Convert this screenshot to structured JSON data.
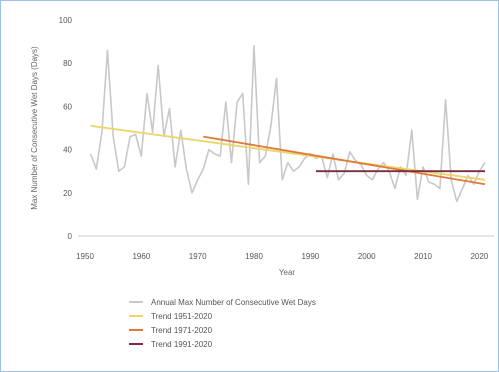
{
  "chart_data": {
    "type": "line",
    "xlabel": "Year",
    "ylabel": "Max Number of Consecutive Wet Days (Days)",
    "xlim": [
      1950,
      2021
    ],
    "ylim": [
      0,
      100
    ],
    "xticks": [
      "1950",
      "1960",
      "1970",
      "1980",
      "1990",
      "2000",
      "2010",
      "2020"
    ],
    "yticks": [
      "0",
      "20",
      "40",
      "60",
      "80",
      "100"
    ],
    "grid": false,
    "legend_position": "bottom",
    "series": [
      {
        "name": "Annual Max Number of Consecutive Wet Days",
        "color": "#c8c8c8",
        "x": [
          1951,
          1952,
          1953,
          1954,
          1955,
          1956,
          1957,
          1958,
          1959,
          1960,
          1961,
          1962,
          1963,
          1964,
          1965,
          1966,
          1967,
          1968,
          1969,
          1970,
          1971,
          1972,
          1973,
          1974,
          1975,
          1976,
          1977,
          1978,
          1979,
          1980,
          1981,
          1982,
          1983,
          1984,
          1985,
          1986,
          1987,
          1988,
          1989,
          1990,
          1991,
          1992,
          1993,
          1994,
          1995,
          1996,
          1997,
          1998,
          1999,
          2000,
          2001,
          2002,
          2003,
          2004,
          2005,
          2006,
          2007,
          2008,
          2009,
          2010,
          2011,
          2012,
          2013,
          2014,
          2015,
          2016,
          2017,
          2018,
          2019,
          2020,
          2021
        ],
        "values": [
          38,
          31,
          48,
          86,
          46,
          30,
          32,
          46,
          47,
          37,
          66,
          48,
          79,
          46,
          59,
          32,
          49,
          31,
          20,
          26,
          31,
          40,
          38,
          37,
          62,
          34,
          62,
          66,
          24,
          88,
          34,
          37,
          51,
          73,
          26,
          34,
          30,
          32,
          36,
          38,
          36,
          37,
          27,
          38,
          26,
          29,
          39,
          35,
          33,
          28,
          26,
          31,
          34,
          30,
          22,
          32,
          28,
          49,
          17,
          32,
          25,
          24,
          22,
          63,
          26,
          16,
          22,
          28,
          24,
          30,
          34
        ]
      },
      {
        "name": "Trend 1951-2020",
        "color": "#ead66a",
        "x": [
          1951,
          2021
        ],
        "values": [
          51,
          26
        ]
      },
      {
        "name": "Trend 1971-2020",
        "color": "#e07a3a",
        "x": [
          1971,
          2021
        ],
        "values": [
          46,
          24
        ]
      },
      {
        "name": "Trend 1991-2020",
        "color": "#7a2b40",
        "x": [
          1991,
          2021
        ],
        "values": [
          30,
          30
        ]
      }
    ]
  }
}
